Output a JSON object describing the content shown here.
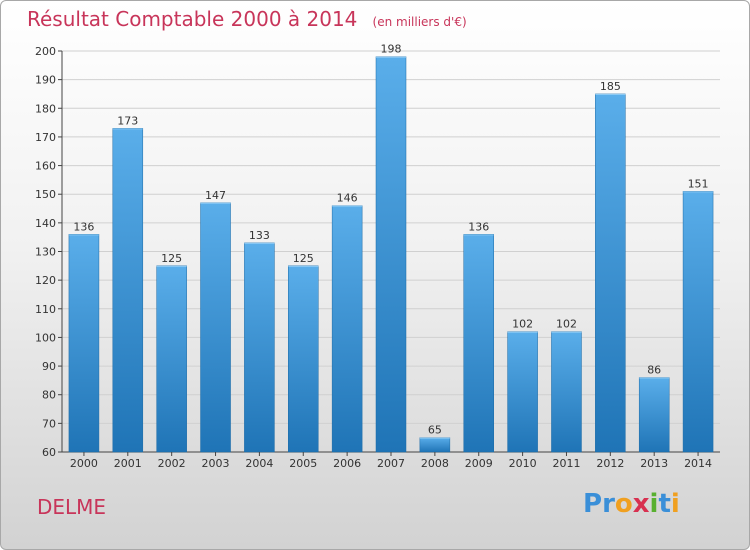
{
  "title": "Résultat Comptable 2000 à 2014",
  "unit_note": "(en milliers d'€)",
  "place_name": "DELME",
  "logo": {
    "letters": [
      {
        "char": "P",
        "color": "#3a8fd8"
      },
      {
        "char": "r",
        "color": "#3a8fd8"
      },
      {
        "char": "o",
        "color": "#f0a020"
      },
      {
        "char": "x",
        "color": "#d83050"
      },
      {
        "char": "i",
        "color": "#58b030"
      },
      {
        "char": "t",
        "color": "#3a8fd8"
      },
      {
        "char": "i",
        "color": "#f0a020"
      }
    ]
  },
  "colors": {
    "bar_light": "#5aaeea",
    "bar_dark": "#1f74b6",
    "grid": "#d0d0d0",
    "axis": "#444444",
    "accent": "#c8355a"
  },
  "chart_data": {
    "type": "bar",
    "categories": [
      "2000",
      "2001",
      "2002",
      "2003",
      "2004",
      "2005",
      "2006",
      "2007",
      "2008",
      "2009",
      "2010",
      "2011",
      "2012",
      "2013",
      "2014"
    ],
    "values": [
      136,
      173,
      125,
      147,
      133,
      125,
      146,
      198,
      65,
      136,
      102,
      102,
      185,
      86,
      151
    ],
    "title": "Résultat Comptable 2000 à 2014",
    "xlabel": "",
    "ylabel": "",
    "ylim": [
      60,
      200
    ],
    "yticks": [
      60,
      70,
      80,
      90,
      100,
      110,
      120,
      130,
      140,
      150,
      160,
      170,
      180,
      190,
      200
    ],
    "grid": true,
    "data_labels": true
  }
}
